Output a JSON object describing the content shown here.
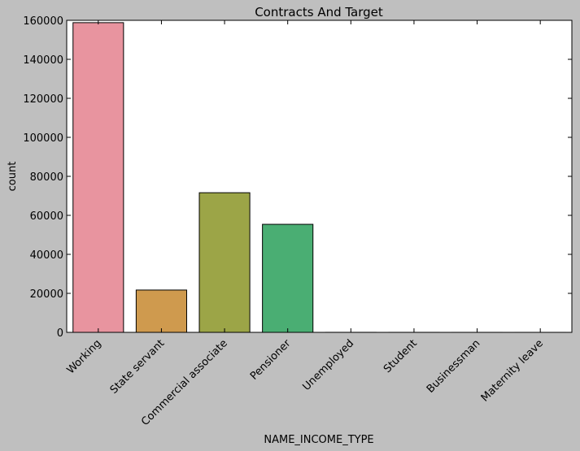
{
  "chart_data": {
    "type": "bar",
    "title": "Contracts And Target",
    "xlabel": "NAME_INCOME_TYPE",
    "ylabel": "count",
    "categories": [
      "Working",
      "State servant",
      "Commercial associate",
      "Pensioner",
      "Unemployed",
      "Student",
      "Businessman",
      "Maternity leave"
    ],
    "values": [
      158800,
      21700,
      71600,
      55400,
      20,
      15,
      8,
      5
    ],
    "ylim": [
      0,
      160000
    ],
    "yticks": [
      "0",
      "20000",
      "40000",
      "60000",
      "80000",
      "100000",
      "120000",
      "140000",
      "160000"
    ],
    "grid": false,
    "colors": [
      "#e8949f",
      "#cf9a4e",
      "#9ca547",
      "#4aae73",
      "#53aaa0",
      "#5ca5d3",
      "#ab94e8",
      "#e88fcb"
    ]
  }
}
